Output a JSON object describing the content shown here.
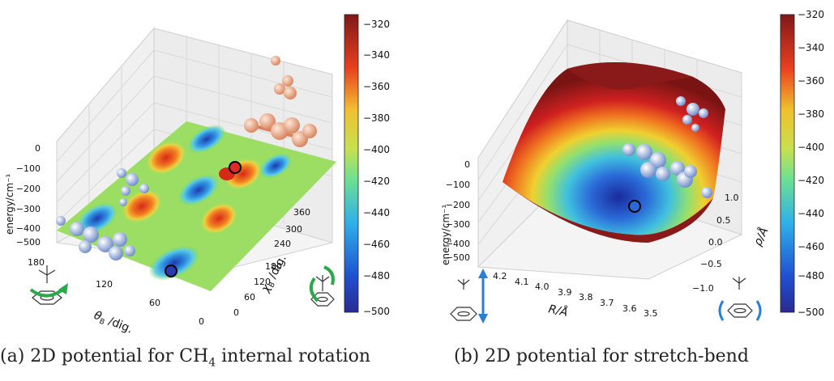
{
  "chart_data": [
    {
      "type": "surface3d",
      "panel": "a",
      "caption_prefix": "(a) 2D potential for CH",
      "caption_sub": "4",
      "caption_suffix": " internal rotation",
      "zlabel": "energy/cm⁻¹",
      "z_ticks": [
        "0",
        "−100",
        "−200",
        "−300",
        "−400",
        "−500"
      ],
      "xlabel_symbol": "θ",
      "xlabel_sub": "B",
      "xlabel_unit": " /dig.",
      "x_ticks": [
        "180",
        "120",
        "60",
        "0"
      ],
      "ylabel_symbol": "χ",
      "ylabel_sub": "B",
      "ylabel_unit": " /dig.",
      "y_ticks": [
        "0",
        "60",
        "120",
        "180",
        "240",
        "300",
        "360"
      ],
      "colorbar_ticks": [
        "−320",
        "−340",
        "−360",
        "−380",
        "−400",
        "−420",
        "−440",
        "−460",
        "−480",
        "−500"
      ],
      "colorbar_range": [
        -500,
        -320
      ],
      "colormap": "jet"
    },
    {
      "type": "surface3d",
      "panel": "b",
      "caption": "(b) 2D potential for stretch-bend",
      "zlabel": "energy/cm⁻¹",
      "z_ticks": [
        "0",
        "−100",
        "−200",
        "−300",
        "−400",
        "−500"
      ],
      "xlabel": "R/Å",
      "x_ticks": [
        "4.2",
        "4.1",
        "4.0",
        "3.9",
        "3.8",
        "3.7",
        "3.6",
        "3.5"
      ],
      "ylabel": "ρ/Å",
      "y_ticks": [
        "1.0",
        "0.5",
        "0.0",
        "−0.5",
        "−1.0"
      ],
      "colorbar_ticks": [
        "−320",
        "−340",
        "−360",
        "−380",
        "−400",
        "−420",
        "−440",
        "−460",
        "−480",
        "−500"
      ],
      "colorbar_range": [
        -500,
        -320
      ],
      "colormap": "jet"
    }
  ],
  "colors": {
    "low": "#1a2a9c",
    "mid": "#7ed957",
    "high": "#8b1a1a",
    "arrow": "#2aa84a",
    "arrow_b": "#2a7fd4",
    "marker_red": "#e02a2a",
    "marker_blue": "#2a3ab0"
  }
}
